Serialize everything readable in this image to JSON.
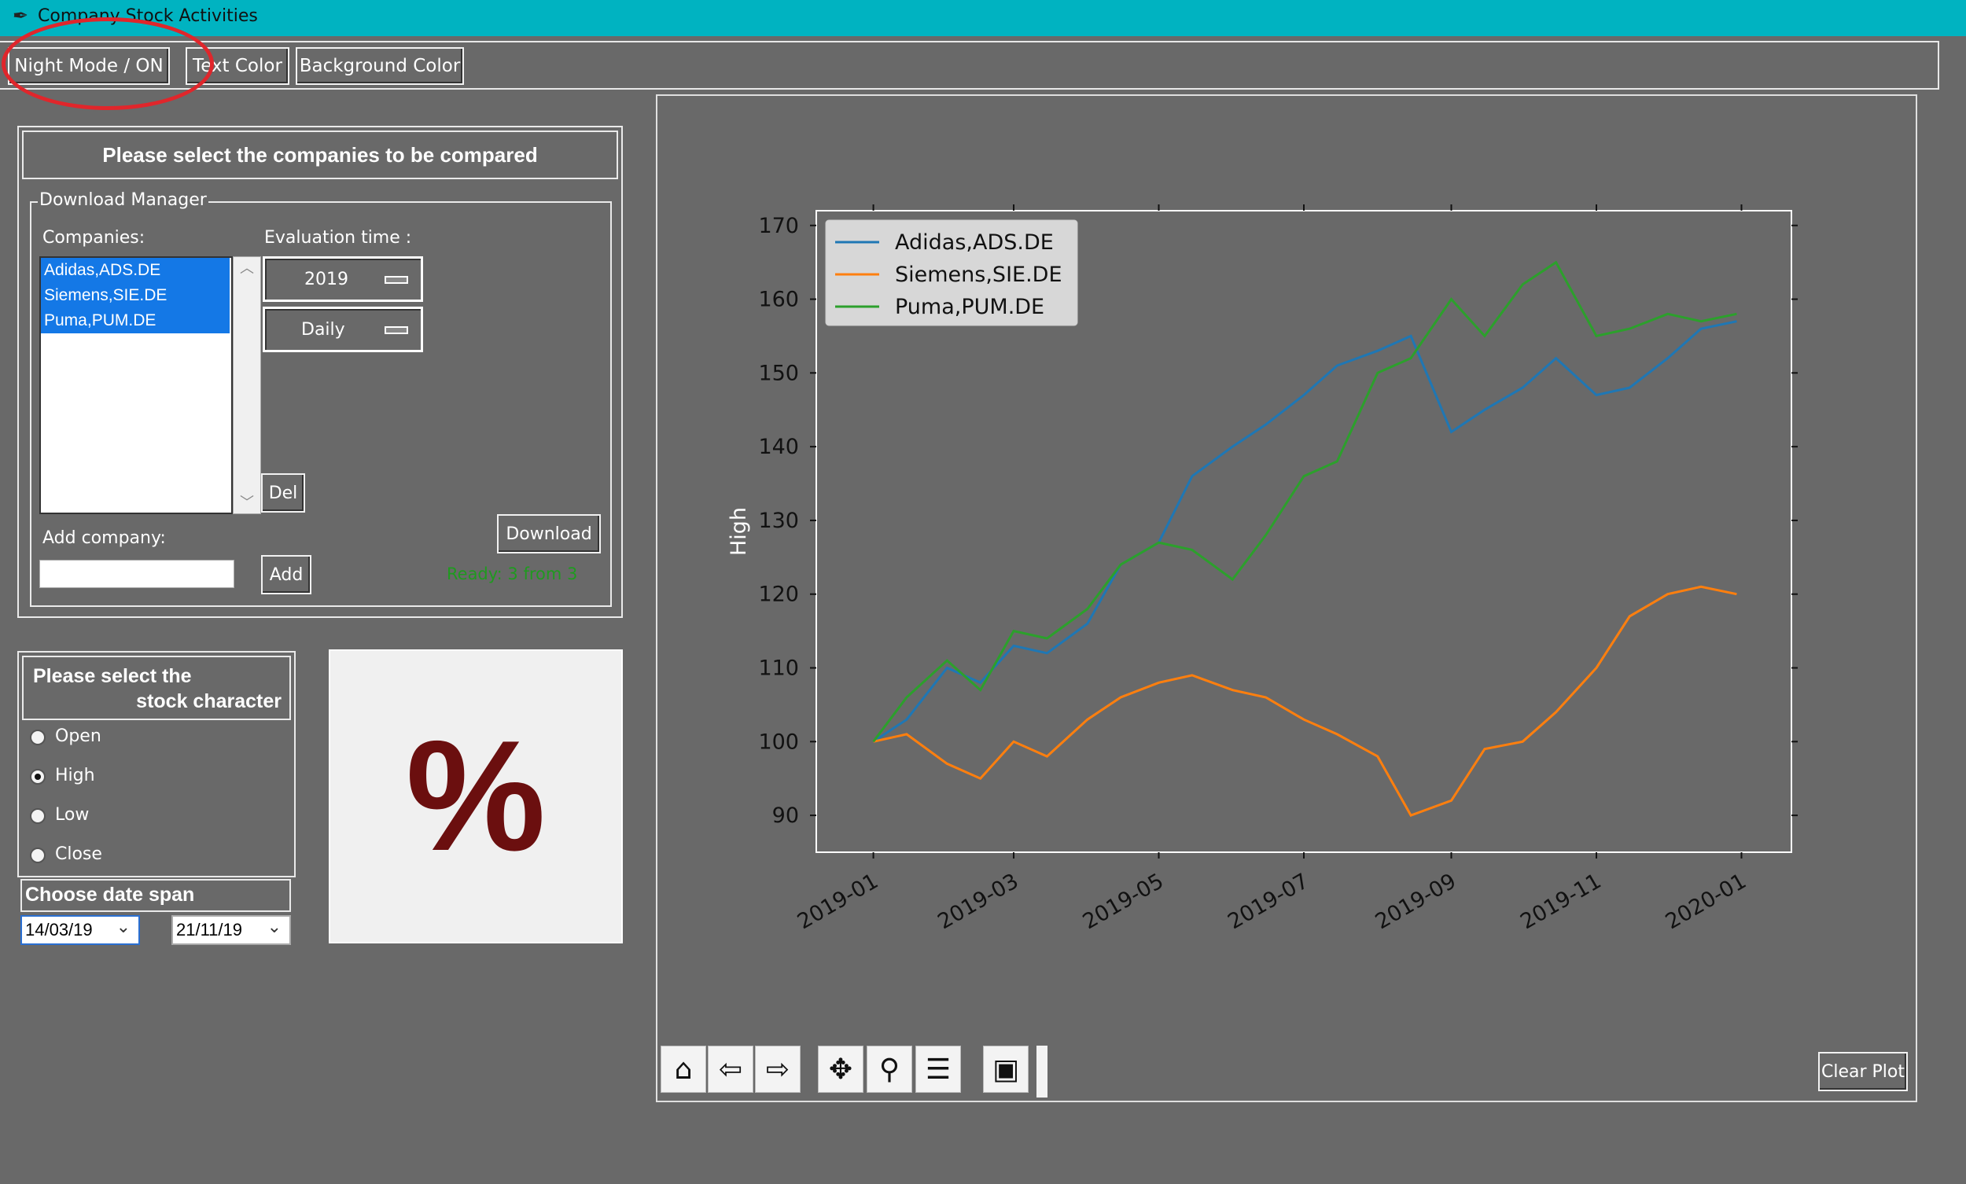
{
  "window": {
    "title": "Company Stock Activities"
  },
  "toolbar": {
    "night_mode": "Night Mode / ON",
    "text_color": "Text Color",
    "background_color": "Background Color"
  },
  "companies_panel": {
    "heading": "Please select the companies to be compared",
    "group_label": "Download Manager",
    "companies_label": "Companies:",
    "evaluation_label": "Evaluation time :",
    "companies": [
      "Adidas,ADS.DE",
      "Siemens,SIE.DE",
      "Puma,PUM.DE"
    ],
    "year_option": "2019",
    "interval_option": "Daily",
    "del_button": "Del",
    "download_button": "Download",
    "add_company_label": "Add company:",
    "add_company_value": "",
    "add_button": "Add",
    "status": "Ready: 3 from 3",
    "status_color": "#1f9a1f"
  },
  "stock_character": {
    "heading_line1": "Please select the",
    "heading_line2": "stock character",
    "options": [
      "Open",
      "High",
      "Low",
      "Close"
    ],
    "selected": "High"
  },
  "date_span": {
    "heading": "Choose date span",
    "start": "14/03/19",
    "end": "21/11/19"
  },
  "percent_tile": {
    "symbol": "%",
    "color": "#6b0f0f"
  },
  "plot_toolbar": {
    "icons": [
      "home-icon",
      "back-arrow-icon",
      "forward-arrow-icon",
      "pan-icon",
      "zoom-icon",
      "configure-subplots-icon",
      "save-icon"
    ]
  },
  "clear_plot_button": "Clear Plot",
  "chart_data": {
    "type": "line",
    "ylabel": "High",
    "xlabel": "",
    "ylim": [
      85,
      172
    ],
    "yticks": [
      90,
      100,
      110,
      120,
      130,
      140,
      150,
      160,
      170
    ],
    "xticks": [
      "2019-01",
      "2019-03",
      "2019-05",
      "2019-07",
      "2019-09",
      "2019-11",
      "2020-01"
    ],
    "legend_position": "top-left",
    "x": [
      "2019-01-01",
      "2019-01-15",
      "2019-02-01",
      "2019-02-15",
      "2019-03-01",
      "2019-03-15",
      "2019-04-01",
      "2019-04-15",
      "2019-05-01",
      "2019-05-15",
      "2019-06-01",
      "2019-06-15",
      "2019-07-01",
      "2019-07-15",
      "2019-08-01",
      "2019-08-15",
      "2019-09-01",
      "2019-09-15",
      "2019-10-01",
      "2019-10-15",
      "2019-11-01",
      "2019-11-15",
      "2019-12-01",
      "2019-12-15",
      "2019-12-30"
    ],
    "series": [
      {
        "name": "Adidas,ADS.DE",
        "color": "#1f77b4",
        "values": [
          100,
          103,
          110,
          108,
          113,
          112,
          116,
          124,
          127,
          136,
          140,
          143,
          147,
          151,
          153,
          155,
          142,
          145,
          148,
          152,
          147,
          148,
          152,
          156,
          157
        ]
      },
      {
        "name": "Siemens,SIE.DE",
        "color": "#ff7f0e",
        "values": [
          100,
          101,
          97,
          95,
          100,
          98,
          103,
          106,
          108,
          109,
          107,
          106,
          103,
          101,
          98,
          90,
          92,
          99,
          100,
          104,
          110,
          117,
          120,
          121,
          120
        ]
      },
      {
        "name": "Puma,PUM.DE",
        "color": "#2ca02c",
        "values": [
          100,
          106,
          111,
          107,
          115,
          114,
          118,
          124,
          127,
          126,
          122,
          128,
          136,
          138,
          150,
          152,
          160,
          155,
          162,
          165,
          155,
          156,
          158,
          157,
          158
        ]
      }
    ]
  }
}
